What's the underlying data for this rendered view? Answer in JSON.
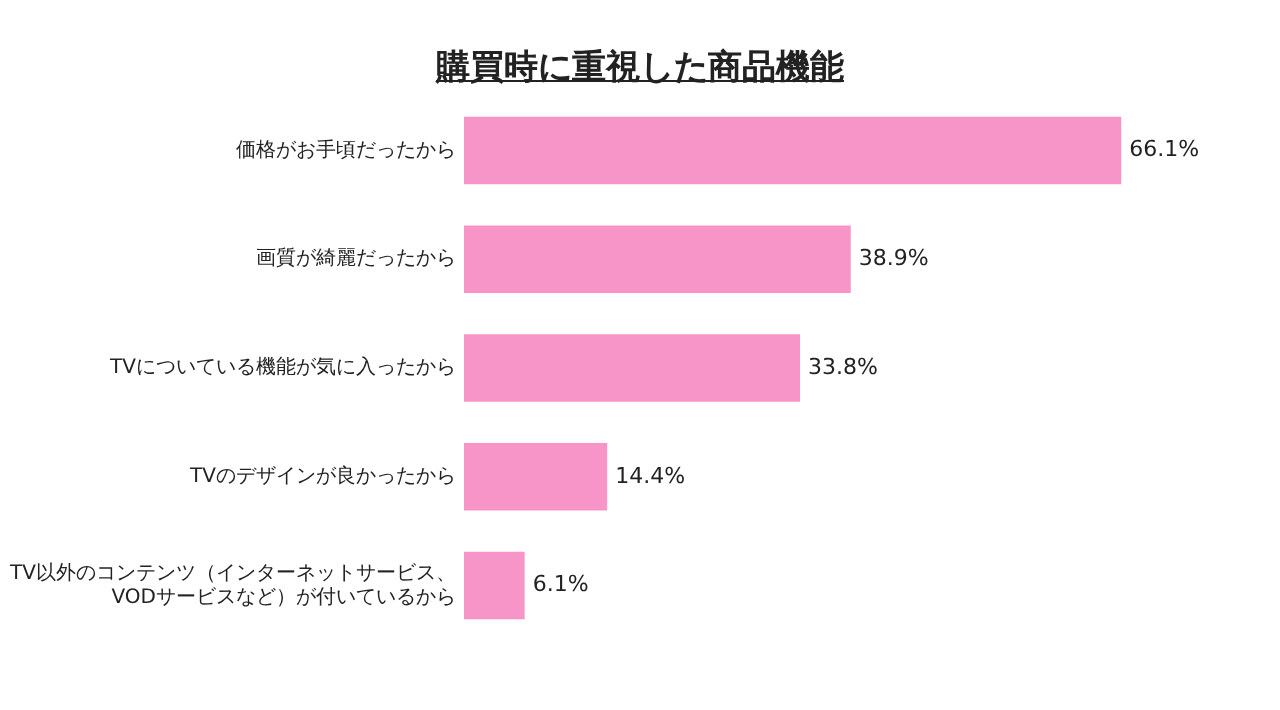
{
  "chart_data": {
    "type": "bar",
    "orientation": "horizontal",
    "title": "購買時に重視した商品機能",
    "categories": [
      "価格がお手頃だったから",
      "画質が綺麗だったから",
      "TVについている機能が気に入ったから",
      "TVのデザインが良かったから",
      "TV以外のコンテンツ（インターネットサービス、VODサービスなど）が付いているから"
    ],
    "values": [
      66.1,
      38.9,
      33.8,
      14.4,
      6.1
    ],
    "value_labels": [
      "66.1%",
      "38.9%",
      "33.8%",
      "14.4%",
      "6.1%"
    ],
    "color": "#f895c8",
    "tick_labels": "y",
    "grid": false,
    "legend": false
  }
}
